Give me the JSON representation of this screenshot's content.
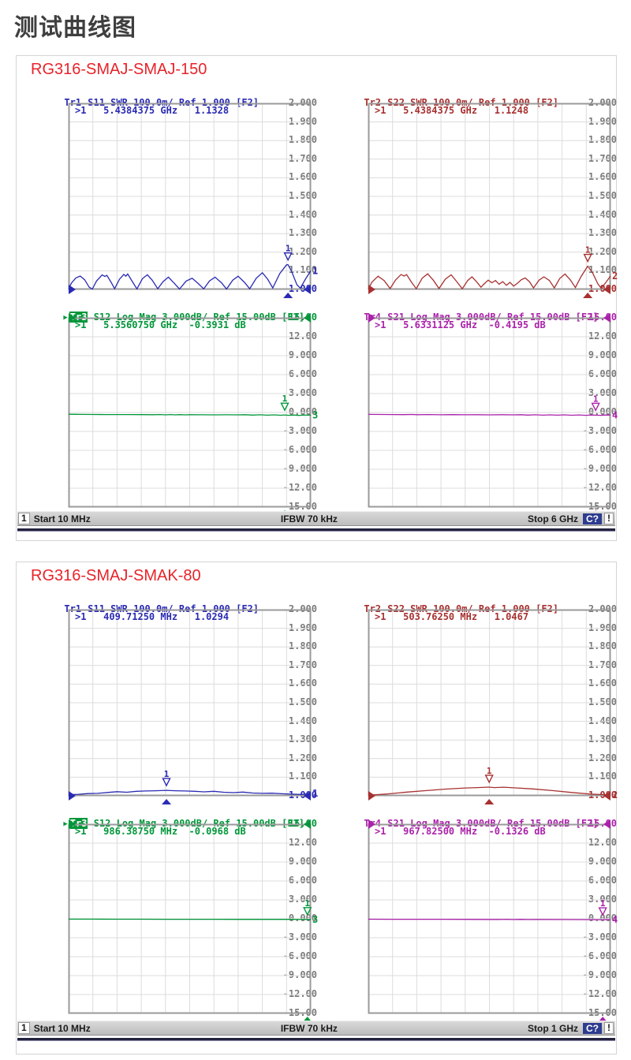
{
  "page": {
    "title": "测试曲线图"
  },
  "colors": {
    "tr1": "#2a2ab4",
    "tr2": "#a83030",
    "tr3": "#009639",
    "tr4": "#aa22aa",
    "grid": "#dcdcdc",
    "frame": "#9a9a9a",
    "tick": "#7a7a7a",
    "panel_title": "#e8232a",
    "page_title": "#3f3f3f",
    "cal_badge_bg": "#2d3c8f"
  },
  "panels": [
    {
      "title": "RG316-SMAJ-SMAJ-150",
      "charts": [
        0,
        1,
        2,
        3
      ],
      "status": {
        "channel": "1",
        "start": "Start 10 MHz",
        "ifbw": "IFBW 70 kHz",
        "stop": "Stop 6 GHz",
        "cal_badge": "C?",
        "warn_badge": "!"
      }
    },
    {
      "title": "RG316-SMAJ-SMAK-80",
      "charts": [
        4,
        5,
        6,
        7
      ],
      "status": {
        "channel": "1",
        "start": "Start 10 MHz",
        "ifbw": "IFBW 70 kHz",
        "stop": "Stop 1 GHz",
        "cal_badge": "C?",
        "warn_badge": "!"
      }
    }
  ],
  "chart_data": [
    {
      "id": "panel1-tr1",
      "type": "line",
      "panel": 0,
      "slot": 0,
      "color_key": "tr1",
      "header": {
        "active": false,
        "tr": "Tr1",
        "rest": " S11 SWR 100.0m/ Ref 1.000 [F2]"
      },
      "marker_readout": ">1   5.4384375 GHz   1.1328",
      "marker": {
        "label": "1",
        "x": 0.906,
        "y": 1.1328
      },
      "stimulus_x": 0.906,
      "trace_no": "1",
      "yticks": [
        "2.000",
        "1.900",
        "1.800",
        "1.700",
        "1.600",
        "1.500",
        "1.400",
        "1.300",
        "1.200",
        "1.100",
        "1.000"
      ],
      "ref_index": 10,
      "ylim": [
        1.0,
        2.0
      ],
      "x_start": "10 MHz",
      "x_stop": "6 GHz",
      "points": [
        [
          0,
          1.004
        ],
        [
          0.012,
          1.035
        ],
        [
          0.03,
          1.062
        ],
        [
          0.048,
          1.072
        ],
        [
          0.066,
          1.052
        ],
        [
          0.085,
          1.012
        ],
        [
          0.098,
          1.002
        ],
        [
          0.115,
          1.045
        ],
        [
          0.138,
          1.078
        ],
        [
          0.15,
          1.07
        ],
        [
          0.158,
          1.076
        ],
        [
          0.175,
          1.04
        ],
        [
          0.19,
          1.004
        ],
        [
          0.21,
          1.055
        ],
        [
          0.228,
          1.081
        ],
        [
          0.236,
          1.071
        ],
        [
          0.244,
          1.083
        ],
        [
          0.262,
          1.045
        ],
        [
          0.282,
          1.003
        ],
        [
          0.305,
          1.058
        ],
        [
          0.325,
          1.079
        ],
        [
          0.345,
          1.05
        ],
        [
          0.368,
          1.004
        ],
        [
          0.39,
          1.042
        ],
        [
          0.412,
          1.066
        ],
        [
          0.435,
          1.035
        ],
        [
          0.458,
          1.002
        ],
        [
          0.485,
          1.045
        ],
        [
          0.51,
          1.06
        ],
        [
          0.535,
          1.032
        ],
        [
          0.558,
          1.003
        ],
        [
          0.582,
          1.046
        ],
        [
          0.605,
          1.066
        ],
        [
          0.632,
          1.035
        ],
        [
          0.652,
          1.002
        ],
        [
          0.678,
          1.05
        ],
        [
          0.7,
          1.071
        ],
        [
          0.725,
          1.04
        ],
        [
          0.748,
          1.004
        ],
        [
          0.775,
          1.06
        ],
        [
          0.8,
          1.09
        ],
        [
          0.822,
          1.055
        ],
        [
          0.843,
          1.008
        ],
        [
          0.872,
          1.085
        ],
        [
          0.9,
          1.132
        ],
        [
          0.906,
          1.133
        ],
        [
          0.92,
          1.1
        ],
        [
          0.943,
          1.025
        ],
        [
          0.957,
          1.007
        ],
        [
          0.978,
          1.055
        ],
        [
          1,
          1.1
        ]
      ]
    },
    {
      "id": "panel1-tr2",
      "type": "line",
      "panel": 0,
      "slot": 1,
      "color_key": "tr2",
      "header": {
        "active": false,
        "tr": "Tr2",
        "rest": " S22 SWR 100.0m/ Ref 1.000 [F2]"
      },
      "marker_readout": ">1   5.4384375 GHz   1.1248",
      "marker": {
        "label": "1",
        "x": 0.906,
        "y": 1.1248
      },
      "stimulus_x": 0.906,
      "trace_no": "2",
      "yticks": [
        "2.000",
        "1.900",
        "1.800",
        "1.700",
        "1.600",
        "1.500",
        "1.400",
        "1.300",
        "1.200",
        "1.100",
        "1.000"
      ],
      "ref_index": 10,
      "ylim": [
        1.0,
        2.0
      ],
      "x_start": "10 MHz",
      "x_stop": "6 GHz",
      "points": [
        [
          0,
          1.003
        ],
        [
          0.015,
          1.04
        ],
        [
          0.04,
          1.071
        ],
        [
          0.065,
          1.048
        ],
        [
          0.09,
          1.005
        ],
        [
          0.112,
          1.05
        ],
        [
          0.135,
          1.08
        ],
        [
          0.148,
          1.072
        ],
        [
          0.158,
          1.08
        ],
        [
          0.178,
          1.04
        ],
        [
          0.198,
          1.004
        ],
        [
          0.222,
          1.06
        ],
        [
          0.245,
          1.084
        ],
        [
          0.268,
          1.05
        ],
        [
          0.292,
          1.005
        ],
        [
          0.318,
          1.055
        ],
        [
          0.342,
          1.079
        ],
        [
          0.365,
          1.042
        ],
        [
          0.388,
          1.004
        ],
        [
          0.41,
          1.048
        ],
        [
          0.428,
          1.068
        ],
        [
          0.448,
          1.04
        ],
        [
          0.465,
          1.012
        ],
        [
          0.48,
          1.032
        ],
        [
          0.495,
          1.05
        ],
        [
          0.51,
          1.036
        ],
        [
          0.525,
          1.048
        ],
        [
          0.54,
          1.028
        ],
        [
          0.555,
          1.042
        ],
        [
          0.57,
          1.022
        ],
        [
          0.585,
          1.038
        ],
        [
          0.6,
          1.018
        ],
        [
          0.615,
          1.032
        ],
        [
          0.632,
          1.052
        ],
        [
          0.648,
          1.062
        ],
        [
          0.665,
          1.042
        ],
        [
          0.682,
          1.008
        ],
        [
          0.705,
          1.05
        ],
        [
          0.725,
          1.068
        ],
        [
          0.748,
          1.048
        ],
        [
          0.768,
          1.008
        ],
        [
          0.79,
          1.058
        ],
        [
          0.812,
          1.083
        ],
        [
          0.835,
          1.05
        ],
        [
          0.855,
          1.01
        ],
        [
          0.878,
          1.068
        ],
        [
          0.906,
          1.125
        ],
        [
          0.925,
          1.092
        ],
        [
          0.948,
          1.03
        ],
        [
          0.962,
          1.006
        ],
        [
          0.982,
          1.04
        ],
        [
          1,
          1.072
        ]
      ]
    },
    {
      "id": "panel1-tr3",
      "type": "line",
      "panel": 0,
      "slot": 2,
      "color_key": "tr3",
      "header": {
        "active": true,
        "tr": "Tr3",
        "rest": " S12 Log Mag 3.000dB/ Ref 15.00dB [F2]"
      },
      "marker_readout": ">1   5.3560750 GHz  -0.3931 dB",
      "marker": {
        "label": "1",
        "x": 0.8925,
        "y": -0.3931
      },
      "stimulus_x": 0.8925,
      "trace_no": "3",
      "yticks": [
        "15.00",
        "12.00",
        "9.000",
        "6.000",
        "3.000",
        "0.000",
        "-3.000",
        "-6.000",
        "-9.000",
        "-12.00",
        "-15.00"
      ],
      "ref_index": 0,
      "ylim": [
        -15,
        15
      ],
      "x_start": "10 MHz",
      "x_stop": "6 GHz",
      "points": [
        [
          0,
          -0.28
        ],
        [
          0.03,
          -0.29
        ],
        [
          0.05,
          -0.3
        ],
        [
          0.1,
          -0.31
        ],
        [
          0.15,
          -0.32
        ],
        [
          0.2,
          -0.33
        ],
        [
          0.25,
          -0.33
        ],
        [
          0.3,
          -0.34
        ],
        [
          0.35,
          -0.35
        ],
        [
          0.38,
          -0.33
        ],
        [
          0.4,
          -0.37
        ],
        [
          0.42,
          -0.33
        ],
        [
          0.44,
          -0.38
        ],
        [
          0.46,
          -0.34
        ],
        [
          0.48,
          -0.37
        ],
        [
          0.5,
          -0.35
        ],
        [
          0.55,
          -0.36
        ],
        [
          0.6,
          -0.37
        ],
        [
          0.65,
          -0.36
        ],
        [
          0.7,
          -0.38
        ],
        [
          0.73,
          -0.35
        ],
        [
          0.76,
          -0.41
        ],
        [
          0.79,
          -0.36
        ],
        [
          0.82,
          -0.43
        ],
        [
          0.85,
          -0.38
        ],
        [
          0.875,
          -0.44
        ],
        [
          0.8925,
          -0.3931
        ],
        [
          0.91,
          -0.45
        ],
        [
          0.93,
          -0.4
        ],
        [
          0.95,
          -0.46
        ],
        [
          0.97,
          -0.41
        ],
        [
          1,
          -0.43
        ]
      ]
    },
    {
      "id": "panel1-tr4",
      "type": "line",
      "panel": 0,
      "slot": 3,
      "color_key": "tr4",
      "header": {
        "active": false,
        "tr": "Tr4",
        "rest": " S21 Log Mag 3.000dB/ Ref 15.00dB [F2]"
      },
      "marker_readout": ">1   5.6331125 GHz  -0.4195 dB",
      "marker": {
        "label": "1",
        "x": 0.9387,
        "y": -0.4195
      },
      "stimulus_x": 0.9387,
      "trace_no": "4",
      "yticks": [
        "15.00",
        "12.00",
        "9.000",
        "6.000",
        "3.000",
        "0.000",
        "-3.000",
        "-6.000",
        "-9.000",
        "-12.00",
        "-15.00"
      ],
      "ref_index": 0,
      "ylim": [
        -15,
        15
      ],
      "x_start": "10 MHz",
      "x_stop": "6 GHz",
      "points": [
        [
          0,
          -0.3
        ],
        [
          0.05,
          -0.31
        ],
        [
          0.1,
          -0.32
        ],
        [
          0.15,
          -0.34
        ],
        [
          0.18,
          -0.31
        ],
        [
          0.2,
          -0.35
        ],
        [
          0.25,
          -0.33
        ],
        [
          0.3,
          -0.36
        ],
        [
          0.35,
          -0.34
        ],
        [
          0.4,
          -0.36
        ],
        [
          0.45,
          -0.35
        ],
        [
          0.5,
          -0.37
        ],
        [
          0.55,
          -0.35
        ],
        [
          0.6,
          -0.38
        ],
        [
          0.63,
          -0.35
        ],
        [
          0.66,
          -0.41
        ],
        [
          0.69,
          -0.36
        ],
        [
          0.72,
          -0.42
        ],
        [
          0.75,
          -0.37
        ],
        [
          0.78,
          -0.43
        ],
        [
          0.81,
          -0.38
        ],
        [
          0.84,
          -0.44
        ],
        [
          0.87,
          -0.39
        ],
        [
          0.9,
          -0.45
        ],
        [
          0.92,
          -0.4
        ],
        [
          0.9387,
          -0.4195
        ],
        [
          0.96,
          -0.45
        ],
        [
          0.98,
          -0.4
        ],
        [
          1,
          -0.42
        ]
      ]
    },
    {
      "id": "panel2-tr1",
      "type": "line",
      "panel": 1,
      "slot": 0,
      "color_key": "tr1",
      "header": {
        "active": false,
        "tr": "Tr1",
        "rest": " S11 SWR 100.0m/ Ref 1.000 [F2]"
      },
      "marker_readout": ">1   409.71250 MHz   1.0294",
      "marker": {
        "label": "1",
        "x": 0.404,
        "y": 1.0294
      },
      "stimulus_x": 0.404,
      "trace_no": "1",
      "yticks": [
        "2.000",
        "1.900",
        "1.800",
        "1.700",
        "1.600",
        "1.500",
        "1.400",
        "1.300",
        "1.200",
        "1.100",
        "1.000"
      ],
      "ref_index": 10,
      "ylim": [
        1.0,
        2.0
      ],
      "x_start": "10 MHz",
      "x_stop": "1 GHz",
      "points": [
        [
          0,
          1.006
        ],
        [
          0.04,
          1.008
        ],
        [
          0.08,
          1.012
        ],
        [
          0.12,
          1.013
        ],
        [
          0.16,
          1.018
        ],
        [
          0.2,
          1.022
        ],
        [
          0.24,
          1.019
        ],
        [
          0.28,
          1.024
        ],
        [
          0.32,
          1.026
        ],
        [
          0.36,
          1.027
        ],
        [
          0.404,
          1.0294
        ],
        [
          0.44,
          1.027
        ],
        [
          0.48,
          1.026
        ],
        [
          0.52,
          1.024
        ],
        [
          0.56,
          1.021
        ],
        [
          0.6,
          1.024
        ],
        [
          0.64,
          1.019
        ],
        [
          0.68,
          1.017
        ],
        [
          0.72,
          1.02
        ],
        [
          0.76,
          1.015
        ],
        [
          0.8,
          1.013
        ],
        [
          0.84,
          1.014
        ],
        [
          0.88,
          1.011
        ],
        [
          0.92,
          1.009
        ],
        [
          0.96,
          1.007
        ],
        [
          1,
          1.012
        ]
      ]
    },
    {
      "id": "panel2-tr2",
      "type": "line",
      "panel": 1,
      "slot": 1,
      "color_key": "tr2",
      "header": {
        "active": false,
        "tr": "Tr2",
        "rest": " S22 SWR 100.0m/ Ref 1.000 [F2]"
      },
      "marker_readout": ">1   503.76250 MHz   1.0467",
      "marker": {
        "label": "1",
        "x": 0.499,
        "y": 1.0467
      },
      "stimulus_x": 0.499,
      "trace_no": "2",
      "yticks": [
        "2.000",
        "1.900",
        "1.800",
        "1.700",
        "1.600",
        "1.500",
        "1.400",
        "1.300",
        "1.200",
        "1.100",
        "1.000"
      ],
      "ref_index": 10,
      "ylim": [
        1.0,
        2.0
      ],
      "x_start": "10 MHz",
      "x_stop": "1 GHz",
      "points": [
        [
          0,
          1.003
        ],
        [
          0.08,
          1.01
        ],
        [
          0.16,
          1.02
        ],
        [
          0.24,
          1.028
        ],
        [
          0.32,
          1.036
        ],
        [
          0.4,
          1.042
        ],
        [
          0.45,
          1.044
        ],
        [
          0.499,
          1.0467
        ],
        [
          0.52,
          1.044
        ],
        [
          0.56,
          1.046
        ],
        [
          0.6,
          1.043
        ],
        [
          0.68,
          1.037
        ],
        [
          0.76,
          1.028
        ],
        [
          0.84,
          1.018
        ],
        [
          0.92,
          1.009
        ],
        [
          1,
          1.005
        ]
      ]
    },
    {
      "id": "panel2-tr3",
      "type": "line",
      "panel": 1,
      "slot": 2,
      "color_key": "tr3",
      "header": {
        "active": true,
        "tr": "Tr3",
        "rest": " S12 Log Mag 3.000dB/ Ref 15.00dB [F2]"
      },
      "marker_readout": ">1   986.38750 MHz  -0.0968 dB",
      "marker": {
        "label": "1",
        "x": 0.986,
        "y": -0.0968
      },
      "stimulus_x": 0.986,
      "trace_no": "3",
      "yticks": [
        "15.00",
        "12.00",
        "9.000",
        "6.000",
        "3.000",
        "0.000",
        "-3.000",
        "-6.000",
        "-9.000",
        "-12.00",
        "-15.00"
      ],
      "ref_index": 0,
      "ylim": [
        -15,
        15
      ],
      "x_start": "10 MHz",
      "x_stop": "1 GHz",
      "points": [
        [
          0,
          -0.05
        ],
        [
          0.1,
          -0.055
        ],
        [
          0.2,
          -0.06
        ],
        [
          0.3,
          -0.065
        ],
        [
          0.4,
          -0.07
        ],
        [
          0.5,
          -0.075
        ],
        [
          0.6,
          -0.08
        ],
        [
          0.7,
          -0.085
        ],
        [
          0.8,
          -0.088
        ],
        [
          0.9,
          -0.092
        ],
        [
          0.986,
          -0.0968
        ],
        [
          1,
          -0.098
        ]
      ]
    },
    {
      "id": "panel2-tr4",
      "type": "line",
      "panel": 1,
      "slot": 3,
      "color_key": "tr4",
      "header": {
        "active": false,
        "tr": "Tr4",
        "rest": " S21 Log Mag 3.000dB/ Ref 15.00dB [F2]"
      },
      "marker_readout": ">1   967.82500 MHz  -0.1326 dB",
      "marker": {
        "label": "1",
        "x": 0.968,
        "y": -0.1326
      },
      "stimulus_x": 0.968,
      "trace_no": "4",
      "yticks": [
        "15.00",
        "12.00",
        "9.000",
        "6.000",
        "3.000",
        "0.000",
        "-3.000",
        "-6.000",
        "-9.000",
        "-12.00",
        "-15.00"
      ],
      "ref_index": 0,
      "ylim": [
        -15,
        15
      ],
      "x_start": "10 MHz",
      "x_stop": "1 GHz",
      "points": [
        [
          0,
          -0.06
        ],
        [
          0.1,
          -0.07
        ],
        [
          0.2,
          -0.075
        ],
        [
          0.3,
          -0.08
        ],
        [
          0.4,
          -0.09
        ],
        [
          0.5,
          -0.095
        ],
        [
          0.54,
          -0.1
        ],
        [
          0.57,
          -0.085
        ],
        [
          0.6,
          -0.108
        ],
        [
          0.63,
          -0.09
        ],
        [
          0.66,
          -0.11
        ],
        [
          0.7,
          -0.1
        ],
        [
          0.8,
          -0.11
        ],
        [
          0.9,
          -0.12
        ],
        [
          0.968,
          -0.1326
        ],
        [
          1,
          -0.13
        ]
      ]
    }
  ]
}
